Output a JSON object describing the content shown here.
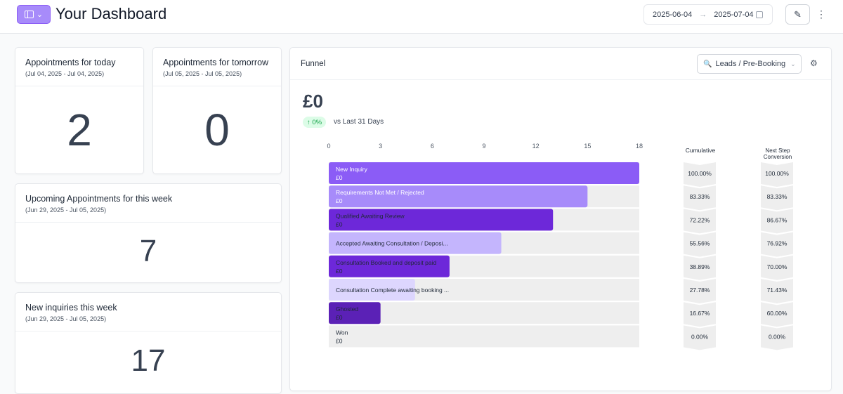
{
  "header": {
    "title": "Your Dashboard",
    "date_start": "2025-06-04",
    "date_end": "2025-07-04",
    "arrow": "→",
    "edit_icon": "✎",
    "more_icon": "⋮"
  },
  "cards": [
    {
      "title": "Appointments for today",
      "range": "(Jul 04, 2025 - Jul 04, 2025)",
      "value": "2"
    },
    {
      "title": "Appointments for tomorrow",
      "range": "(Jul 05, 2025 - Jul 05, 2025)",
      "value": "0"
    },
    {
      "title": "Upcoming Appointments for this week",
      "range": "(Jun 29, 2025 - Jul 05, 2025)",
      "value": "7"
    },
    {
      "title": "New inquiries this week",
      "range": "(Jun 29, 2025 - Jul 05, 2025)",
      "value": "17"
    }
  ],
  "funnel": {
    "title": "Funnel",
    "pipeline_select": "Leads / Pre-Booking",
    "search_icon": "🔍",
    "filter_icon": "⚙",
    "total_value": "£0",
    "change_badge": "↑ 0%",
    "comparison": "vs Last 31 Days",
    "cumulative_header": "Cumulative",
    "next_step_header_line1": "Next Step",
    "next_step_header_line2": "Conversion"
  },
  "chart_data": {
    "type": "bar",
    "orientation": "horizontal",
    "x_ticks": [
      "0",
      "3",
      "6",
      "9",
      "12",
      "15",
      "18"
    ],
    "xlim": [
      0,
      18
    ],
    "categories": [
      "New Inquiry",
      "Requirements Not Met / Rejected",
      "Qualified   Awaiting Review",
      "Accepted   Awaiting Consultation / Deposi...",
      "Consultation Booked and deposit paid",
      "Consultation Complete   awaiting booking ...",
      "Ghosted",
      "Won"
    ],
    "values": [
      18,
      15,
      13,
      10,
      7,
      5,
      3,
      0
    ],
    "amounts": [
      "£0",
      "£0",
      "£0",
      "",
      "£0",
      "",
      "£0",
      "£0"
    ],
    "colors": [
      "#8b5cf6",
      "#a78bfa",
      "#6d28d9",
      "#c4b5fd",
      "#6d28d9",
      "#ddd6fe",
      "#5b21b6",
      "#eeeeee"
    ],
    "label_colors": [
      "#ffffff",
      "#ffffff",
      "#1f2937",
      "#1f2937",
      "#1f2937",
      "#1f2937",
      "#1f2937",
      "#1f2937"
    ],
    "cumulative": [
      "100.00%",
      "83.33%",
      "72.22%",
      "55.56%",
      "38.89%",
      "27.78%",
      "16.67%",
      "0.00%"
    ],
    "next_step_conversion": [
      "100.00%",
      "83.33%",
      "86.67%",
      "76.92%",
      "70.00%",
      "71.43%",
      "60.00%",
      "0.00%"
    ]
  }
}
